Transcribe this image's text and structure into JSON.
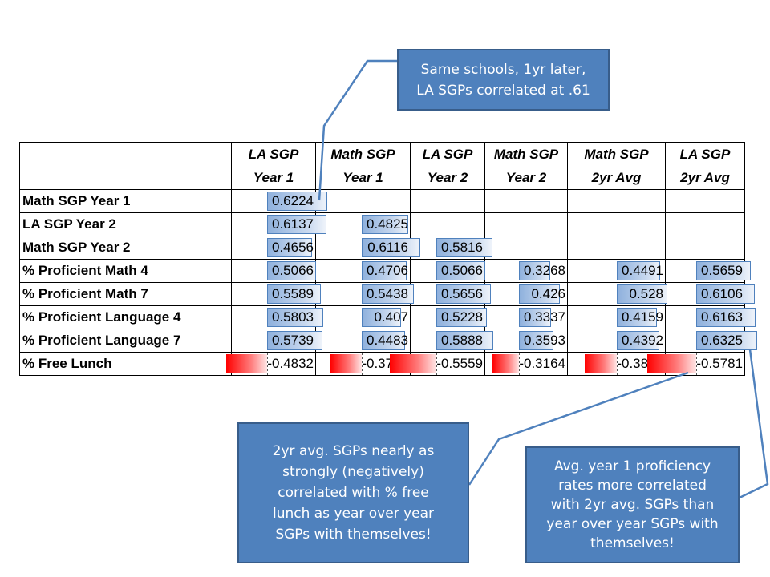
{
  "chart_data": {
    "type": "table",
    "columns": [
      {
        "line1": "LA SGP",
        "line2": "Year 1"
      },
      {
        "line1": "Math SGP",
        "line2": "Year 1"
      },
      {
        "line1": "LA SGP",
        "line2": "Year 2"
      },
      {
        "line1": "Math SGP",
        "line2": "Year 2"
      },
      {
        "line1": "Math SGP",
        "line2": "2yr Avg"
      },
      {
        "line1": "LA SGP",
        "line2": "2yr Avg"
      }
    ],
    "rows": [
      {
        "label": "Math SGP Year 1",
        "values": [
          0.6224,
          null,
          null,
          null,
          null,
          null
        ]
      },
      {
        "label": "LA SGP Year 2",
        "values": [
          0.6137,
          0.4825,
          null,
          null,
          null,
          null
        ]
      },
      {
        "label": "Math SGP Year 2",
        "values": [
          0.4656,
          0.6116,
          0.5816,
          null,
          null,
          null
        ]
      },
      {
        "label": "% Proficient Math 4",
        "values": [
          0.5066,
          0.4706,
          0.5066,
          0.3268,
          0.4491,
          0.5659
        ]
      },
      {
        "label": "% Proficient Math 7",
        "values": [
          0.5589,
          0.5438,
          0.5656,
          0.426,
          0.528,
          0.6106
        ]
      },
      {
        "label": "% Proficient Language 4",
        "values": [
          0.5803,
          0.407,
          0.5228,
          0.3337,
          0.4159,
          0.6163
        ]
      },
      {
        "label": "% Proficient Language 7",
        "values": [
          0.5739,
          0.4483,
          0.5888,
          0.3593,
          0.4392,
          0.6325
        ]
      },
      {
        "label": "% Free Lunch",
        "values": [
          -0.4832,
          -0.3704,
          -0.5559,
          -0.3164,
          -0.3813,
          -0.5781
        ]
      }
    ],
    "colors": {
      "positive_bar": "#8fb1dd",
      "positive_border": "#4f81bd",
      "negative_bar": "#ff0000"
    }
  },
  "callouts": {
    "top": "Same schools, 1yr later,\nLA SGPs correlated at .61",
    "bottom_left": "2yr avg. SGPs nearly as\nstrongly (negatively)\ncorrelated with % free\nlunch as year over year\nSGPs with themselves!",
    "bottom_right": "Avg. year 1 proficiency\nrates more correlated\nwith 2yr avg. SGPs than\nyear over year SGPs with\nthemselves!"
  },
  "colors": {
    "callout_fill": "#4f81bd",
    "callout_border": "#385d8a",
    "connector": "#4f81bd"
  }
}
